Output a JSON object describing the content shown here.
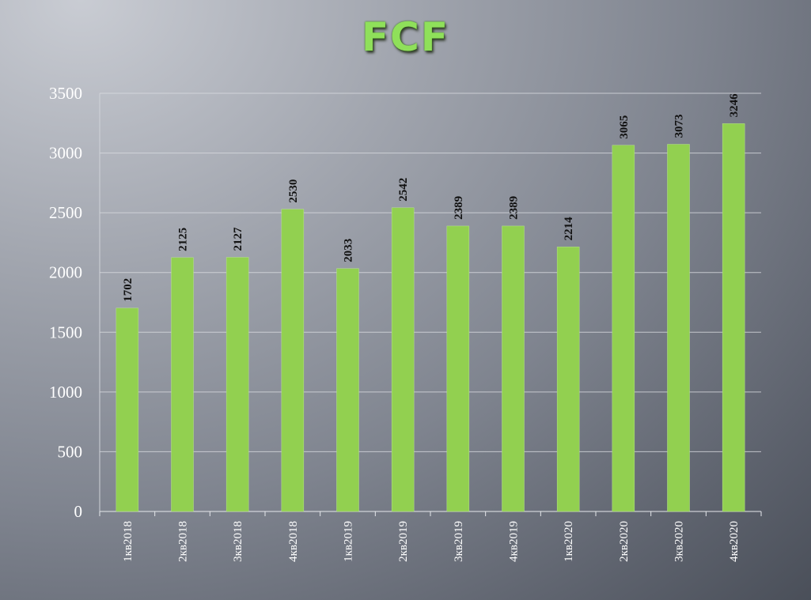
{
  "chart_data": {
    "type": "bar",
    "title": "FCF",
    "xlabel": "",
    "ylabel": "",
    "categories": [
      "1кв2018",
      "2кв2018",
      "3кв2018",
      "4кв2018",
      "1кв2019",
      "2кв2019",
      "3кв2019",
      "4кв2019",
      "1кв2020",
      "2кв2020",
      "3кв2020",
      "4кв2020"
    ],
    "values": [
      1702,
      2125,
      2127,
      2530,
      2033,
      2542,
      2389,
      2389,
      2214,
      3065,
      3073,
      3246
    ],
    "ylim": [
      0,
      3500
    ],
    "yticks": [
      0,
      500,
      1000,
      1500,
      2000,
      2500,
      3000,
      3500
    ],
    "grid": true,
    "legend": "none",
    "colors": {
      "bar": "#92d050",
      "grid": "#d9dbe0",
      "labels": "#111111",
      "ticks": "#ffffff"
    }
  }
}
